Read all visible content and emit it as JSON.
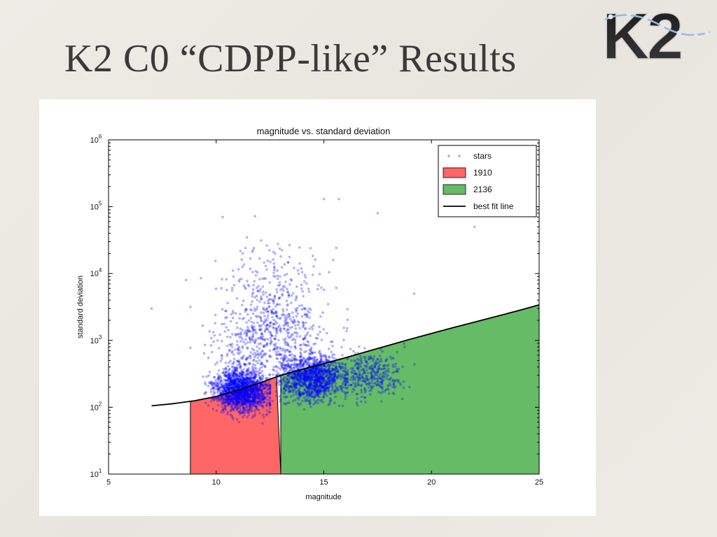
{
  "slide": {
    "title": "K2 C0 “CDPP-like” Results",
    "logo_text": "K2"
  },
  "colors": {
    "background": "#ece9e3",
    "title": "#3a3a3a",
    "stars": "#0000ff",
    "region_1910": "#ff6666",
    "region_2136": "#66bb66",
    "fit_line": "#000000"
  },
  "chart_data": {
    "type": "scatter",
    "title": "magnitude vs. standard deviation",
    "xlabel": "magnitude",
    "ylabel": "standard deviation",
    "xlim": [
      5,
      25
    ],
    "ylim": [
      10,
      1000000
    ],
    "yscale": "log",
    "x_ticks": [
      "5",
      "10",
      "15",
      "20",
      "25"
    ],
    "y_ticks": [
      {
        "base": "10",
        "exp": "1"
      },
      {
        "base": "10",
        "exp": "2"
      },
      {
        "base": "10",
        "exp": "3"
      },
      {
        "base": "10",
        "exp": "4"
      },
      {
        "base": "10",
        "exp": "5"
      },
      {
        "base": "10",
        "exp": "6"
      }
    ],
    "legend": {
      "placement": "top-right",
      "entries": [
        {
          "label": "stars",
          "kind": "points",
          "color": "#0000ff"
        },
        {
          "label": "1910",
          "kind": "patch",
          "color": "#ff6666"
        },
        {
          "label": "2136",
          "kind": "patch",
          "color": "#66bb66"
        },
        {
          "label": "best fit line",
          "kind": "line",
          "color": "#000000"
        }
      ]
    },
    "regions": [
      {
        "name": "1910",
        "x_from": 8.8,
        "x_to": 13.0,
        "color": "#ff6666"
      },
      {
        "name": "2136",
        "x_from": 13.0,
        "x_to": 25.0,
        "color": "#66bb66"
      }
    ],
    "best_fit_line": {
      "x": [
        7,
        8,
        9,
        10,
        11,
        12,
        13,
        14,
        15,
        16,
        17,
        18,
        19,
        20,
        21,
        22,
        23,
        24,
        25
      ],
      "y": [
        105,
        113,
        125,
        145,
        180,
        230,
        300,
        370,
        450,
        550,
        680,
        840,
        1040,
        1270,
        1550,
        1880,
        2280,
        2770,
        3400
      ]
    },
    "stars": {
      "approx_count": 9500,
      "dense_core": {
        "x_range": [
          9.0,
          16.0
        ],
        "y_range": [
          60,
          2000
        ]
      },
      "outliers": [
        {
          "x": 7.0,
          "y": 3000
        },
        {
          "x": 22.0,
          "y": 50000
        },
        {
          "x": 17.5,
          "y": 80000
        },
        {
          "x": 15.0,
          "y": 130000
        },
        {
          "x": 15.7,
          "y": 130000
        },
        {
          "x": 10.3,
          "y": 70000
        },
        {
          "x": 11.8,
          "y": 72000
        },
        {
          "x": 10.8,
          "y": 9000
        },
        {
          "x": 19.2,
          "y": 5000
        },
        {
          "x": 8.6,
          "y": 8000
        }
      ]
    }
  }
}
